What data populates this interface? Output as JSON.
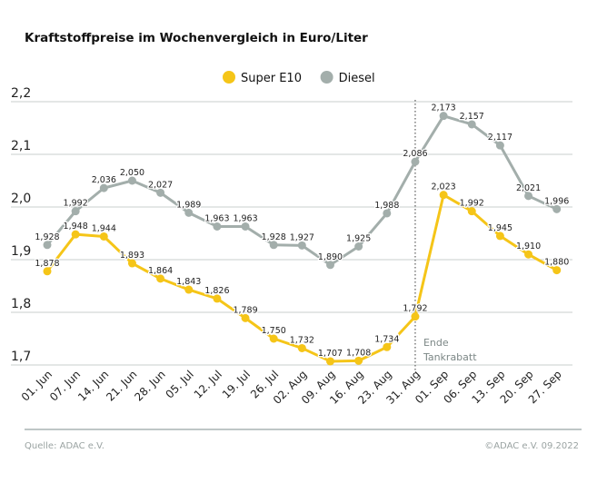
{
  "chart_data": {
    "type": "line",
    "title": "Kraftstoffpreise im Wochenvergleich in Euro/Liter",
    "categories": [
      "01. Jun",
      "07. Jun",
      "14. Jun",
      "21. Jun",
      "28. Jun",
      "05. Jul",
      "12. Jul",
      "19. Jul",
      "26. Jul",
      "02. Aug",
      "09. Aug",
      "16. Aug",
      "23. Aug",
      "31. Aug",
      "01. Sep",
      "06. Sep",
      "13. Sep",
      "20. Sep",
      "27. Sep"
    ],
    "series": [
      {
        "name": "Super E10",
        "color": "#f5c518",
        "values": [
          1.878,
          1.948,
          1.944,
          1.893,
          1.864,
          1.843,
          1.826,
          1.789,
          1.75,
          1.732,
          1.707,
          1.708,
          1.734,
          1.792,
          2.023,
          1.992,
          1.945,
          1.91,
          1.88
        ]
      },
      {
        "name": "Diesel",
        "color": "#a3aeab",
        "values": [
          1.928,
          1.992,
          2.036,
          2.05,
          2.027,
          1.989,
          1.963,
          1.963,
          1.928,
          1.927,
          1.89,
          1.925,
          1.988,
          2.086,
          2.173,
          2.157,
          2.117,
          2.021,
          1.996
        ]
      }
    ],
    "ylim": [
      1.7,
      2.2
    ],
    "yticks": [
      "1,7",
      "1,8",
      "1,9",
      "2,0",
      "2,1",
      "2,2"
    ],
    "grid": true,
    "legend_placement": "top-center",
    "annotation": {
      "category": "31. Aug",
      "line1": "Ende",
      "line2": "Tankrabatt"
    }
  },
  "footer": {
    "source": "Quelle: ADAC e.V.",
    "copyright": "©ADAC e.V.  09.2022"
  }
}
